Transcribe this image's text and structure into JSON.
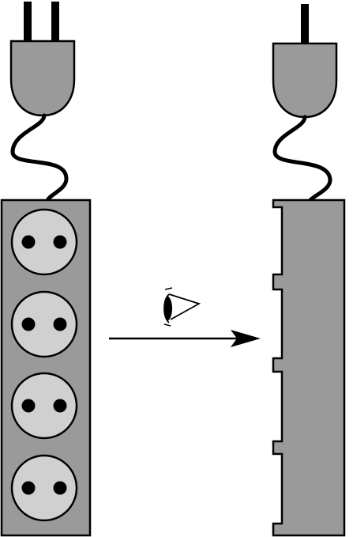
{
  "colors": {
    "body_fill": "#9a9a9a",
    "socket_fill": "#d0d0d0",
    "outline": "#000000",
    "hole": "#000000",
    "background": "#ffffff"
  },
  "front_view": {
    "label": "",
    "socket_count": 4,
    "holes_per_socket": 2
  },
  "side_view": {
    "label": "",
    "notch_count": 4
  },
  "annotations": {
    "eye_icon": "eye-icon",
    "arrow_direction": "right"
  }
}
